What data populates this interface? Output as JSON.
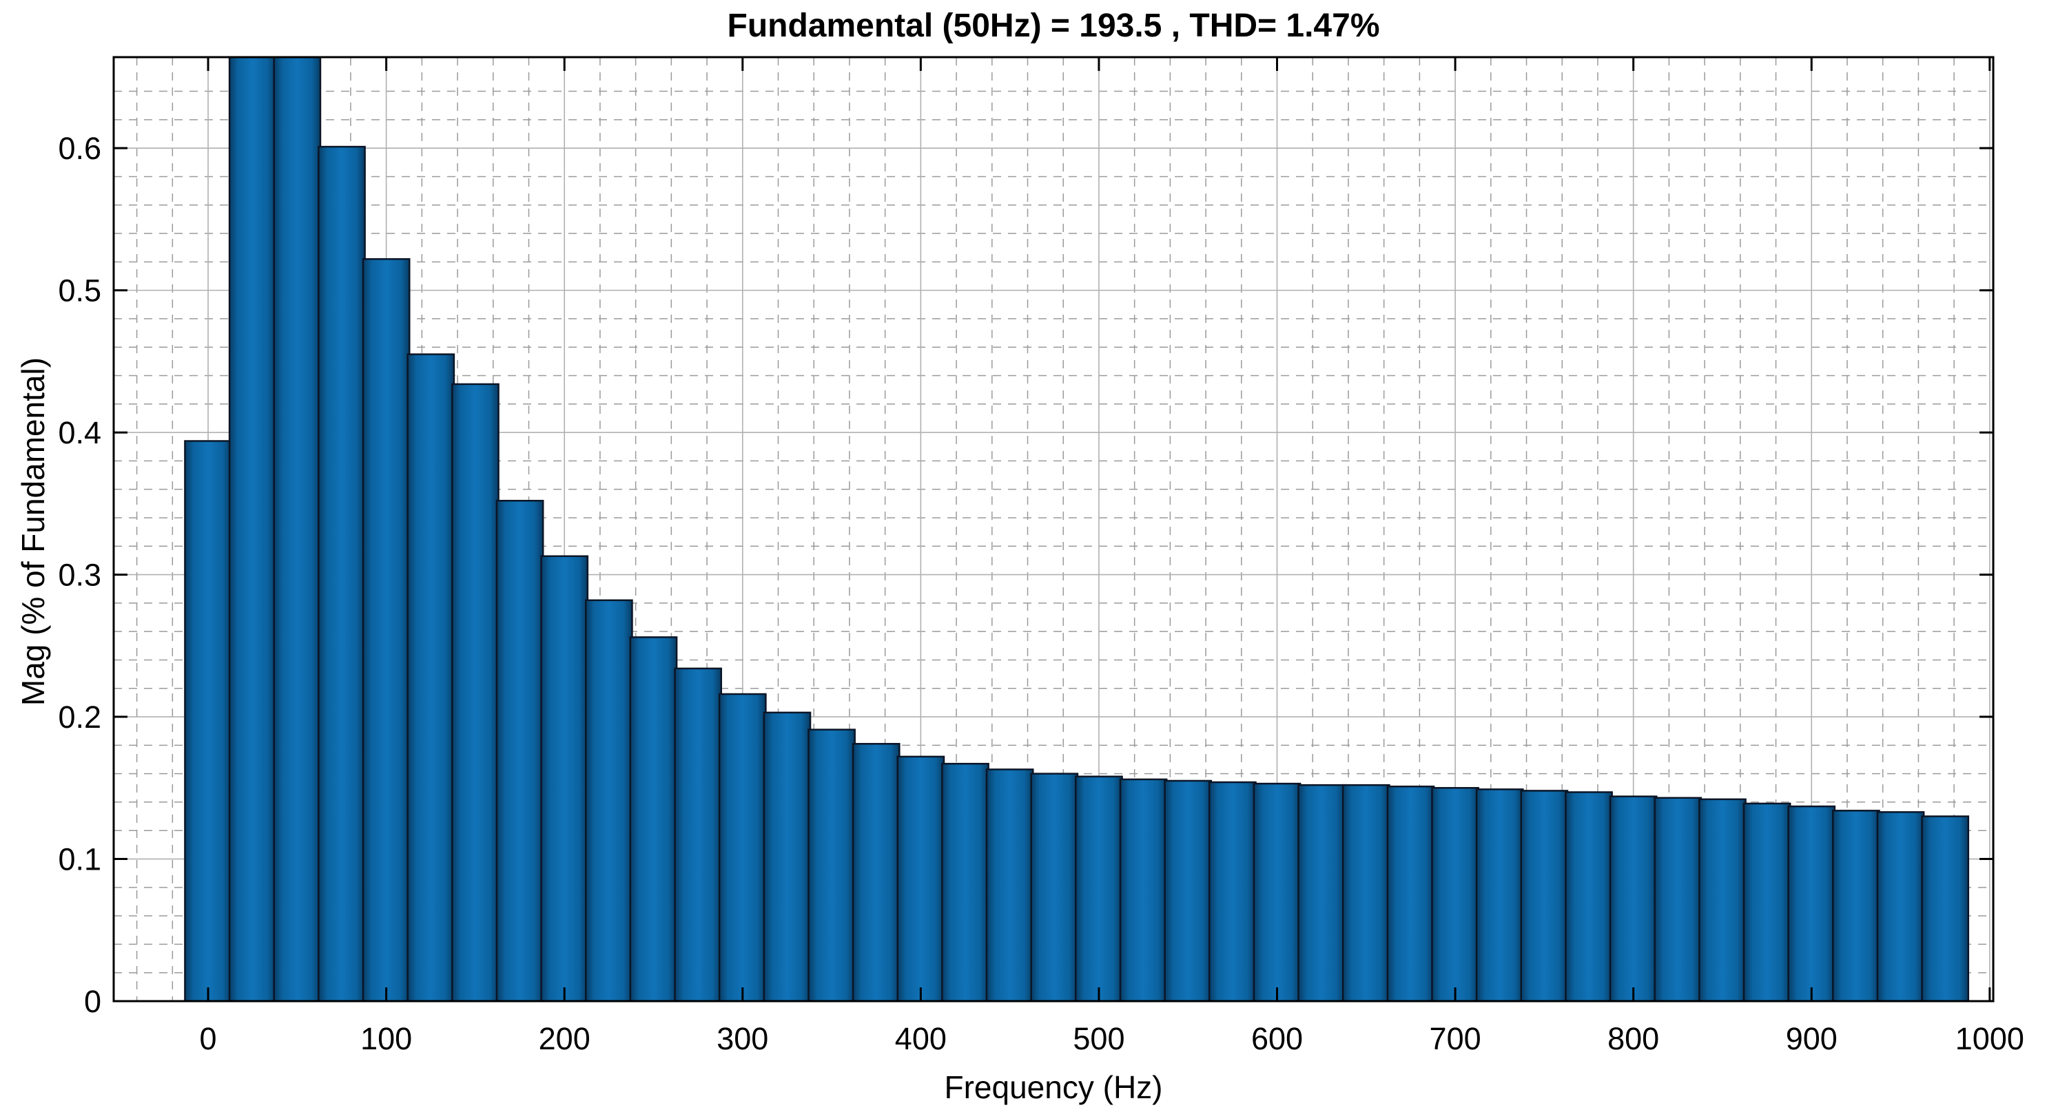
{
  "chart_data": {
    "type": "bar",
    "title": "Fundamental (50Hz) = 193.5 , THD= 1.47%",
    "xlabel": "Frequency (Hz)",
    "ylabel": "Mag (% of Fundamental)",
    "xlim": [
      -53,
      1002
    ],
    "ylim": [
      0,
      0.664
    ],
    "x_major_ticks": [
      0,
      100,
      200,
      300,
      400,
      500,
      600,
      700,
      800,
      900,
      1000
    ],
    "x_major_tick_labels": [
      "0",
      "100",
      "200",
      "300",
      "400",
      "500",
      "600",
      "700",
      "800",
      "900",
      "1000"
    ],
    "y_major_ticks": [
      0,
      0.1,
      0.2,
      0.3,
      0.4,
      0.5,
      0.6
    ],
    "y_major_tick_labels": [
      "0",
      "0.1",
      "0.2",
      "0.3",
      "0.4",
      "0.5",
      "0.6"
    ],
    "x_minor_step": 20,
    "y_minor_step": 0.02,
    "grid": "on",
    "bar_spacing_hz": 25,
    "bar_width_hz": 13,
    "x": [
      0,
      25,
      50,
      75,
      100,
      125,
      150,
      175,
      200,
      225,
      250,
      275,
      300,
      325,
      350,
      375,
      400,
      425,
      450,
      475,
      500,
      525,
      550,
      575,
      600,
      625,
      650,
      675,
      700,
      725,
      750,
      775,
      800,
      825,
      850,
      875,
      900,
      925,
      950,
      975
    ],
    "values": [
      0.394,
      null,
      null,
      0.601,
      0.522,
      0.455,
      0.434,
      0.352,
      0.313,
      0.282,
      0.256,
      0.234,
      0.216,
      0.203,
      0.191,
      0.181,
      0.172,
      0.167,
      0.163,
      0.16,
      0.158,
      0.156,
      0.155,
      0.154,
      0.153,
      0.152,
      0.152,
      0.151,
      0.15,
      0.149,
      0.148,
      0.147,
      0.144,
      0.143,
      0.142,
      0.139,
      0.137,
      0.134,
      0.133,
      0.13
    ],
    "clipped_bars_hz": [
      25,
      50
    ],
    "clipped_note": "bars at 25 Hz and 50 Hz exceed the y-axis limit and are clipped at the top of the axes",
    "colors": {
      "bar_face": "#1173b8",
      "bar_face_mid": "#0b629e",
      "bar_face_edge": "#083d66",
      "bar_edge": "#0b1526",
      "grid_major": "#b0b0b0",
      "grid_minor": "#9a9a9a",
      "axis_border": "#000000",
      "background": "#ffffff"
    }
  }
}
